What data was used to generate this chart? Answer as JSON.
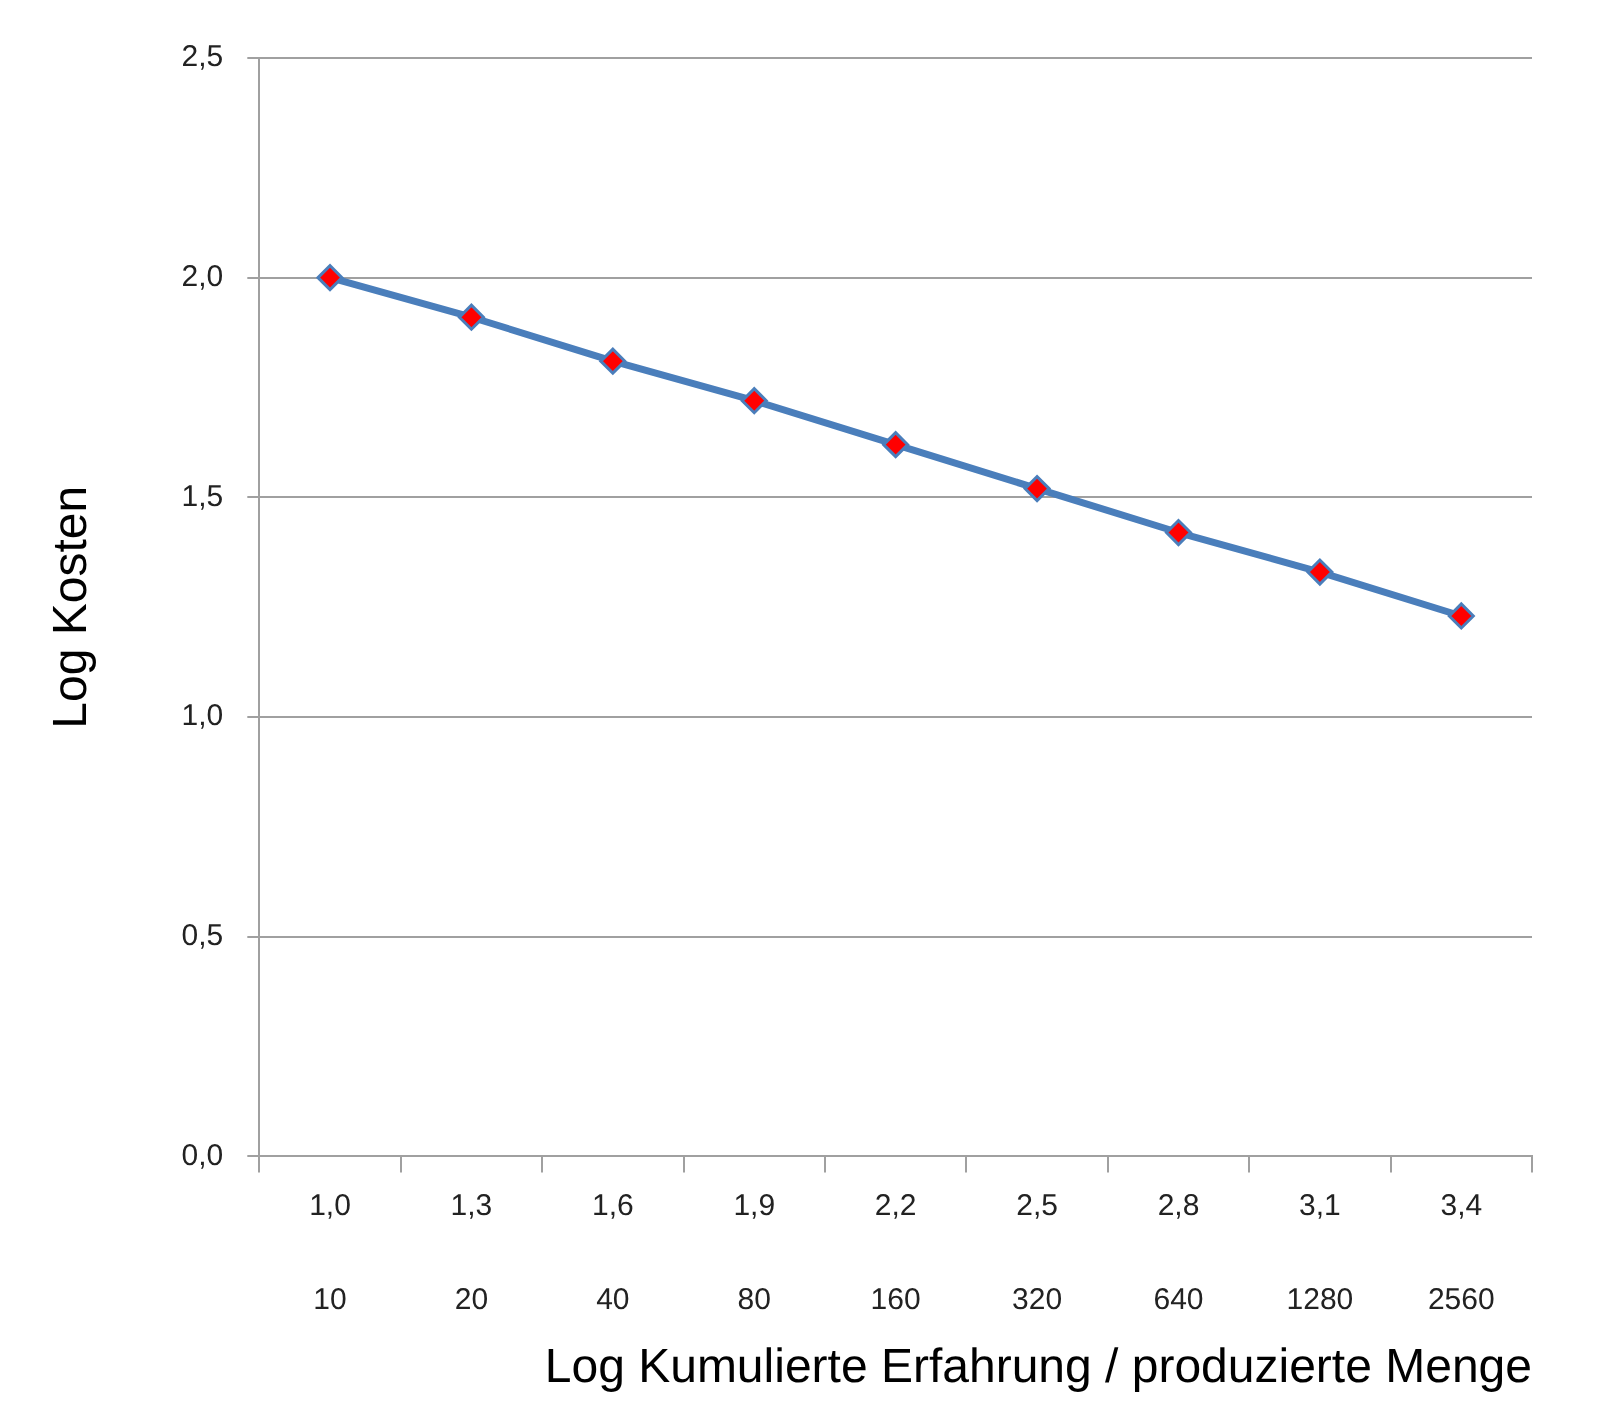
{
  "chart_data": {
    "type": "line",
    "xlabel": "Log Kumulierte Erfahrung / produzierte Menge",
    "ylabel": "Log Kosten",
    "categories": [
      "1,0",
      "1,3",
      "1,6",
      "1,9",
      "2,2",
      "2,5",
      "2,8",
      "3,1",
      "3,4"
    ],
    "series": [
      {
        "color": "#4a7ebb",
        "colors": [
          "#ff0000",
          "#ff0000",
          "#ff0000",
          "#ff0000",
          "#ff0000",
          "#ff0000",
          "#ff0000",
          "#ff0000",
          "#ff0000"
        ],
        "values": [
          2.0,
          1.91,
          1.81,
          1.72,
          1.62,
          1.52,
          1.42,
          1.33,
          1.23
        ]
      }
    ],
    "ylim": [
      0,
      2.5
    ],
    "yticks": [
      {
        "value": 0,
        "label": "0,0"
      },
      {
        "value": 0.5,
        "label": "0,5"
      },
      {
        "value": 1,
        "label": "1,0"
      },
      {
        "value": 1.5,
        "label": "1,5"
      },
      {
        "value": 2,
        "label": "2,0"
      },
      {
        "value": 2.5,
        "label": "2,5"
      }
    ],
    "grid": "y",
    "legend": false,
    "marker": "diamond",
    "line_style": "solid",
    "annotations": [
      "10",
      "20",
      "40",
      "80",
      "160",
      "320",
      "640",
      "1280",
      "2560"
    ]
  }
}
